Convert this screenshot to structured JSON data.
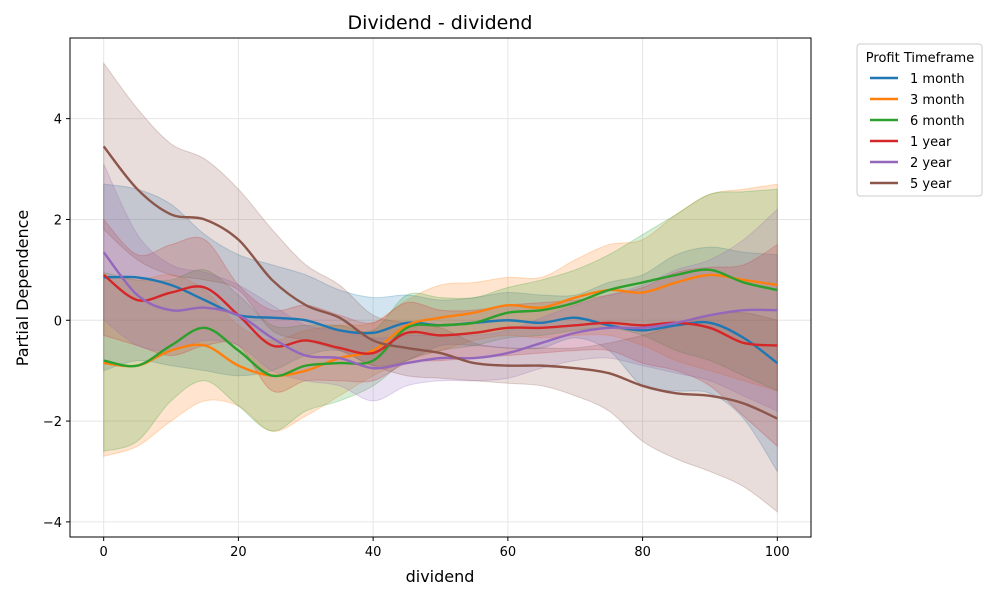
{
  "chart_data": {
    "type": "line",
    "title": "Dividend - dividend",
    "xlabel": "dividend",
    "ylabel": "Partial Dependence",
    "xlim": [
      -5,
      105
    ],
    "ylim": [
      -4.3,
      5.6
    ],
    "x_ticks": [
      0,
      20,
      40,
      60,
      80,
      100
    ],
    "x_tick_labels": [
      "0",
      "20",
      "40",
      "60",
      "80",
      "100"
    ],
    "y_ticks": [
      -4,
      -2,
      0,
      2,
      4
    ],
    "y_tick_labels": [
      "−4",
      "−2",
      "0",
      "2",
      "4"
    ],
    "grid": true,
    "legend": {
      "title": "Profit Timeframe",
      "placement": "outside-right"
    },
    "x": [
      0,
      5,
      10,
      15,
      20,
      25,
      30,
      35,
      40,
      45,
      50,
      55,
      60,
      65,
      70,
      75,
      80,
      85,
      90,
      95,
      100
    ],
    "series": [
      {
        "name": "1 month",
        "color": "#1f77b4",
        "values": [
          0.85,
          0.85,
          0.7,
          0.4,
          0.1,
          0.05,
          0.0,
          -0.2,
          -0.25,
          -0.05,
          -0.1,
          -0.05,
          0.0,
          -0.05,
          0.05,
          -0.1,
          -0.2,
          -0.1,
          -0.05,
          -0.35,
          -0.85
        ],
        "lower": [
          -1.0,
          -0.8,
          -0.9,
          -1.0,
          -1.1,
          -1.0,
          -0.7,
          -0.6,
          -0.9,
          -0.8,
          -0.5,
          -0.5,
          -0.55,
          -0.55,
          -0.35,
          -0.6,
          -1.3,
          -1.4,
          -1.45,
          -1.95,
          -3.0
        ],
        "upper": [
          2.7,
          2.6,
          2.3,
          1.7,
          1.3,
          1.1,
          0.9,
          0.6,
          0.45,
          0.5,
          0.4,
          0.45,
          0.55,
          0.5,
          0.5,
          0.75,
          0.9,
          1.3,
          1.45,
          1.35,
          1.3
        ]
      },
      {
        "name": "3 month",
        "color": "#ff7f0e",
        "values": [
          -0.85,
          -0.9,
          -0.6,
          -0.5,
          -0.9,
          -1.1,
          -1.0,
          -0.75,
          -0.6,
          -0.1,
          0.05,
          0.15,
          0.3,
          0.25,
          0.45,
          0.6,
          0.55,
          0.75,
          0.9,
          0.8,
          0.7
        ],
        "lower": [
          -2.7,
          -2.5,
          -2.0,
          -1.6,
          -1.7,
          -2.2,
          -1.9,
          -1.5,
          -1.1,
          -0.8,
          -0.6,
          -0.4,
          -0.3,
          -0.35,
          -0.3,
          -0.3,
          -0.5,
          -0.8,
          -1.0,
          -1.2,
          -1.4
        ],
        "upper": [
          0.9,
          0.8,
          0.9,
          0.6,
          -0.1,
          -0.4,
          -0.2,
          -0.1,
          -0.05,
          0.4,
          0.7,
          0.75,
          0.85,
          0.85,
          1.2,
          1.5,
          1.6,
          2.1,
          2.5,
          2.6,
          2.7
        ]
      },
      {
        "name": "6 month",
        "color": "#2ca02c",
        "values": [
          -0.8,
          -0.9,
          -0.5,
          -0.15,
          -0.6,
          -1.1,
          -0.9,
          -0.85,
          -0.8,
          -0.15,
          -0.1,
          -0.05,
          0.15,
          0.2,
          0.35,
          0.6,
          0.75,
          0.9,
          1.0,
          0.75,
          0.6
        ],
        "lower": [
          -2.6,
          -2.4,
          -1.6,
          -1.2,
          -1.7,
          -2.2,
          -1.8,
          -1.6,
          -1.3,
          -0.8,
          -0.6,
          -0.5,
          -0.35,
          -0.3,
          -0.2,
          -0.15,
          -0.3,
          -0.6,
          -0.8,
          -1.1,
          -1.4
        ],
        "upper": [
          0.95,
          0.8,
          0.8,
          1.0,
          0.5,
          -0.1,
          -0.1,
          -0.1,
          -0.2,
          0.5,
          0.45,
          0.45,
          0.65,
          0.8,
          1.0,
          1.3,
          1.7,
          2.1,
          2.5,
          2.55,
          2.6
        ]
      },
      {
        "name": "1 year",
        "color": "#d62728",
        "values": [
          0.9,
          0.4,
          0.55,
          0.65,
          0.1,
          -0.5,
          -0.4,
          -0.55,
          -0.65,
          -0.25,
          -0.3,
          -0.25,
          -0.15,
          -0.15,
          -0.1,
          -0.05,
          -0.1,
          -0.05,
          -0.15,
          -0.45,
          -0.5
        ],
        "lower": [
          -0.3,
          -0.5,
          -0.7,
          -0.5,
          -0.5,
          -1.4,
          -1.2,
          -1.2,
          -1.2,
          -0.85,
          -0.8,
          -0.75,
          -0.7,
          -0.65,
          -0.6,
          -0.6,
          -0.85,
          -1.0,
          -1.3,
          -1.9,
          -2.5
        ],
        "upper": [
          2.0,
          1.3,
          1.5,
          1.6,
          0.7,
          0.2,
          0.3,
          0.1,
          -0.05,
          0.35,
          0.2,
          0.2,
          0.3,
          0.35,
          0.4,
          0.5,
          0.65,
          0.95,
          1.05,
          1.1,
          1.5
        ]
      },
      {
        "name": "2 year",
        "color": "#9467bd",
        "values": [
          1.35,
          0.5,
          0.2,
          0.25,
          0.1,
          -0.35,
          -0.7,
          -0.75,
          -0.95,
          -0.85,
          -0.75,
          -0.75,
          -0.65,
          -0.45,
          -0.25,
          -0.15,
          -0.15,
          -0.05,
          0.1,
          0.2,
          0.2
        ],
        "lower": [
          0.0,
          -0.5,
          -0.6,
          -0.4,
          -0.5,
          -1.0,
          -1.2,
          -1.3,
          -1.6,
          -1.3,
          -1.2,
          -1.2,
          -1.15,
          -0.95,
          -0.8,
          -0.75,
          -0.9,
          -1.05,
          -1.2,
          -1.5,
          -1.8
        ],
        "upper": [
          3.1,
          1.7,
          1.1,
          0.95,
          0.7,
          0.3,
          -0.1,
          -0.2,
          -0.35,
          -0.3,
          -0.3,
          -0.3,
          -0.2,
          0.05,
          0.3,
          0.5,
          0.7,
          1.0,
          1.2,
          1.6,
          2.2
        ]
      },
      {
        "name": "5 year",
        "color": "#8c564b",
        "values": [
          3.45,
          2.6,
          2.1,
          2.0,
          1.6,
          0.8,
          0.3,
          0.05,
          -0.4,
          -0.55,
          -0.65,
          -0.85,
          -0.9,
          -0.9,
          -0.95,
          -1.05,
          -1.3,
          -1.45,
          -1.5,
          -1.65,
          -1.95
        ],
        "lower": [
          1.8,
          1.2,
          0.9,
          0.8,
          0.6,
          -0.2,
          -0.4,
          -0.6,
          -0.9,
          -1.1,
          -1.15,
          -1.2,
          -1.25,
          -1.3,
          -1.5,
          -1.8,
          -2.4,
          -2.75,
          -3.0,
          -3.3,
          -3.8
        ],
        "upper": [
          5.1,
          4.2,
          3.5,
          3.2,
          2.6,
          1.8,
          1.1,
          0.7,
          0.1,
          -0.05,
          -0.15,
          -0.45,
          -0.55,
          -0.55,
          -0.55,
          -0.45,
          -0.3,
          -0.1,
          0.1,
          0.15,
          0.0
        ]
      }
    ]
  }
}
